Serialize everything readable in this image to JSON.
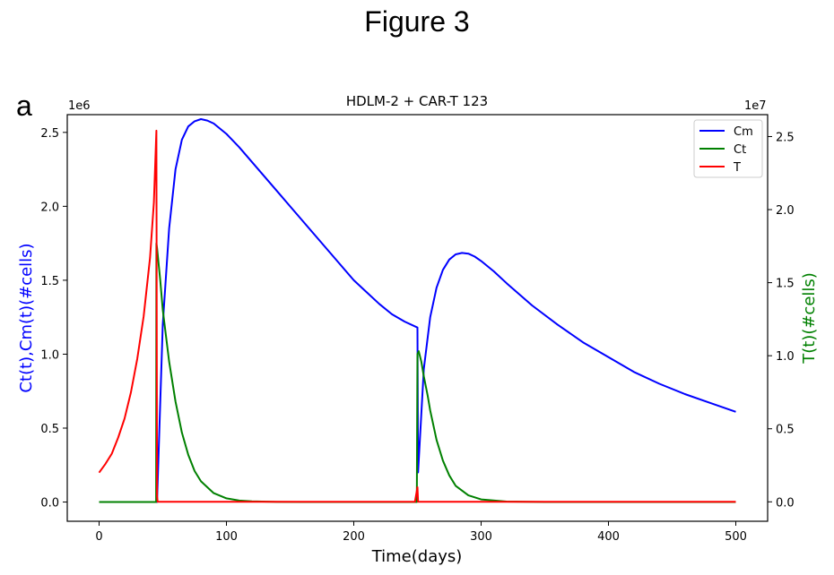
{
  "figure": {
    "title": "Figure 3",
    "panel_letter": "a"
  },
  "chart_data": {
    "type": "line",
    "title": "HDLM-2 + CAR-T 123",
    "xlabel": "Time(days)",
    "ylabel_left": "Ct(t),Cm(t)(#cells)",
    "ylabel_right": "T(t)(#cells)",
    "ylabel_left_color": "#0000ff",
    "ylabel_right_color": "#008000",
    "xlim": [
      -25,
      525
    ],
    "ylim_left": [
      -130000,
      2620000
    ],
    "ylim_right": [
      -1330000,
      26500000
    ],
    "left_offset_label": "1e6",
    "right_offset_label": "1e7",
    "xticks": [
      0,
      100,
      200,
      300,
      400,
      500
    ],
    "xtick_labels": [
      "0",
      "100",
      "200",
      "300",
      "400",
      "500"
    ],
    "yticks_left": [
      0,
      500000,
      1000000,
      1500000,
      2000000,
      2500000
    ],
    "ytick_labels_left": [
      "0.0",
      "0.5",
      "1.0",
      "1.5",
      "2.0",
      "2.5"
    ],
    "yticks_right": [
      0,
      5000000,
      10000000,
      15000000,
      20000000,
      25000000
    ],
    "ytick_labels_right": [
      "0.0",
      "0.5",
      "1.0",
      "1.5",
      "2.0",
      "2.5"
    ],
    "legend": {
      "position": "top-right",
      "entries": [
        "Cm",
        "Ct",
        "T"
      ]
    },
    "grid": false,
    "series": [
      {
        "name": "Cm",
        "axis": "left",
        "color": "#0000ff",
        "x": [
          0,
          45,
          45.5,
          50,
          55,
          60,
          65,
          70,
          75,
          80,
          85,
          90,
          100,
          110,
          120,
          130,
          140,
          150,
          160,
          170,
          180,
          190,
          200,
          210,
          220,
          230,
          240,
          250,
          250.5,
          255,
          260,
          265,
          270,
          275,
          280,
          285,
          290,
          295,
          300,
          310,
          320,
          340,
          360,
          380,
          400,
          420,
          440,
          460,
          480,
          500
        ],
        "y": [
          0,
          0,
          0,
          1200000,
          1850000,
          2250000,
          2450000,
          2540000,
          2575000,
          2590000,
          2580000,
          2560000,
          2490000,
          2400000,
          2300000,
          2200000,
          2100000,
          2000000,
          1900000,
          1800000,
          1700000,
          1600000,
          1500000,
          1420000,
          1340000,
          1270000,
          1220000,
          1180000,
          200000,
          900000,
          1250000,
          1450000,
          1570000,
          1640000,
          1675000,
          1685000,
          1680000,
          1660000,
          1630000,
          1560000,
          1480000,
          1330000,
          1200000,
          1080000,
          980000,
          880000,
          800000,
          730000,
          670000,
          610000
        ]
      },
      {
        "name": "Ct",
        "axis": "left",
        "color": "#008000",
        "x": [
          0,
          44.8,
          45,
          45.5,
          48,
          50,
          55,
          60,
          65,
          70,
          75,
          80,
          90,
          100,
          110,
          120,
          140,
          160,
          200,
          249.5,
          250,
          251,
          253,
          255,
          258,
          260,
          265,
          270,
          275,
          280,
          290,
          300,
          320,
          350,
          400,
          500
        ],
        "y": [
          0,
          0,
          1750000,
          1720000,
          1500000,
          1300000,
          950000,
          680000,
          470000,
          320000,
          210000,
          140000,
          60000,
          25000,
          10000,
          5000,
          1000,
          0,
          0,
          0,
          1000000,
          1020000,
          950000,
          850000,
          720000,
          620000,
          420000,
          280000,
          180000,
          110000,
          45000,
          18000,
          3000,
          0,
          0,
          0
        ]
      },
      {
        "name": "T",
        "axis": "right",
        "color": "#ff0000",
        "x": [
          0,
          5,
          10,
          15,
          20,
          25,
          30,
          35,
          40,
          43,
          45,
          45.5,
          46,
          48,
          50,
          100,
          200,
          248,
          250,
          250.5,
          251,
          253,
          260,
          300,
          400,
          500
        ],
        "y": [
          2000000,
          2600000,
          3300000,
          4400000,
          5700000,
          7500000,
          9800000,
          12700000,
          16700000,
          20500000,
          25400000,
          400000,
          0,
          0,
          0,
          0,
          0,
          0,
          1000000,
          0,
          0,
          0,
          0,
          0,
          0,
          0
        ]
      }
    ]
  }
}
